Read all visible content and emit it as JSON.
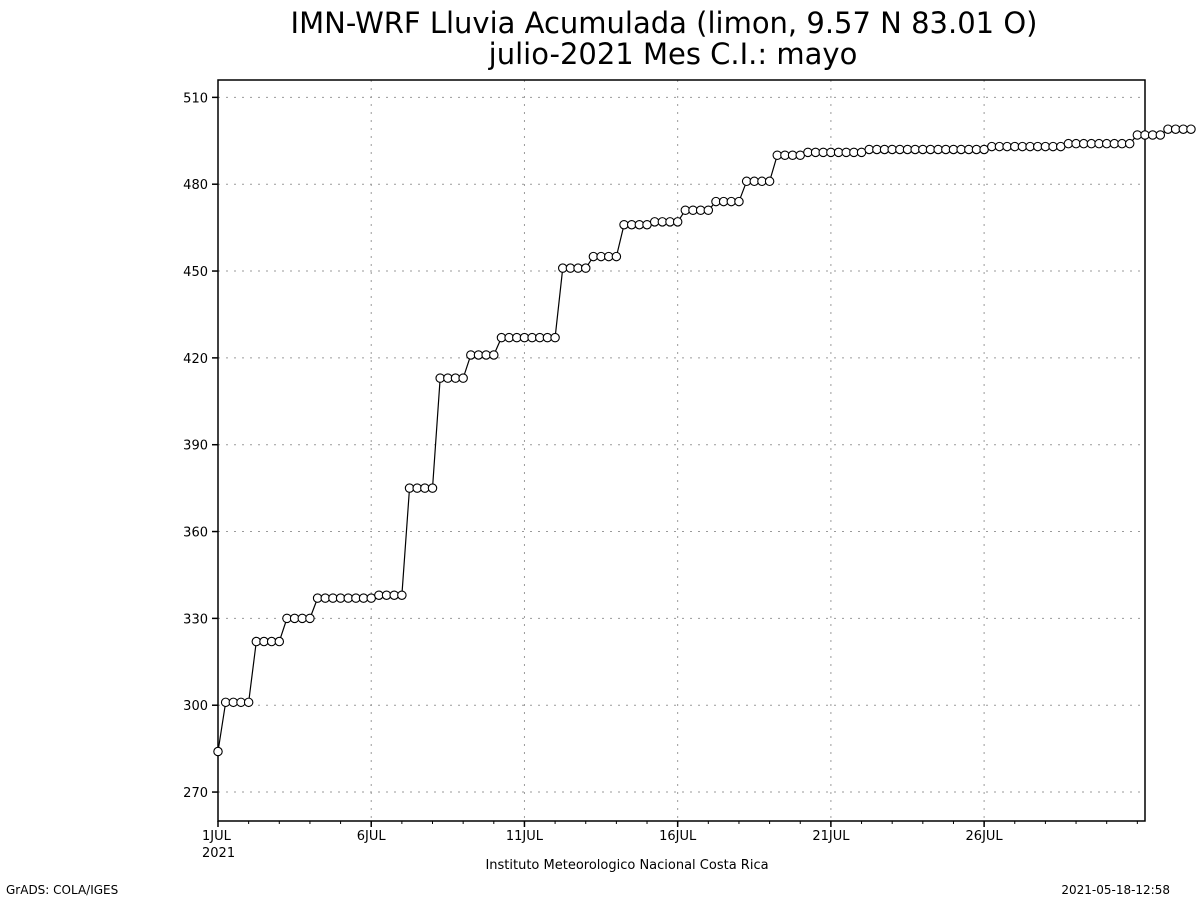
{
  "chart_data": {
    "type": "line",
    "title": "IMN-WRF  Lluvia Acumulada (limon, 9.57  N 83.01  O)",
    "subtitle": "julio-2021 Mes C.I.: mayo",
    "xlabel": "Instituto Meteorologico Nacional Costa Rica",
    "ylabel": "",
    "x_unit": "day of July 2021",
    "xlim": [
      1,
      31.25
    ],
    "ylim": [
      260,
      516
    ],
    "y_ticks": [
      270,
      300,
      330,
      360,
      390,
      420,
      450,
      480,
      510
    ],
    "x_ticks": [
      {
        "x": 1,
        "label": "1JUL",
        "sublabel": "2021"
      },
      {
        "x": 6,
        "label": "6JUL"
      },
      {
        "x": 11,
        "label": "11JUL"
      },
      {
        "x": 16,
        "label": "16JUL"
      },
      {
        "x": 21,
        "label": "21JUL"
      },
      {
        "x": 26,
        "label": "26JUL"
      }
    ],
    "grid": true,
    "marker": "open-circle",
    "series": [
      {
        "x_start": 1,
        "x_step": 0.25,
        "values": [
          284,
          301,
          301,
          301,
          301,
          322,
          322,
          322,
          322,
          330,
          330,
          330,
          330,
          337,
          337,
          337,
          337,
          337,
          337,
          337,
          337,
          338,
          338,
          338,
          338,
          375,
          375,
          375,
          375,
          413,
          413,
          413,
          413,
          421,
          421,
          421,
          421,
          427,
          427,
          427,
          427,
          427,
          427,
          427,
          427,
          451,
          451,
          451,
          451,
          455,
          455,
          455,
          455,
          466,
          466,
          466,
          466,
          467,
          467,
          467,
          467,
          471,
          471,
          471,
          471,
          474,
          474,
          474,
          474,
          481,
          481,
          481,
          481,
          490,
          490,
          490,
          490,
          491,
          491,
          491,
          491,
          491,
          491,
          491,
          491,
          492,
          492,
          492,
          492,
          492,
          492,
          492,
          492,
          492,
          492,
          492,
          492,
          492,
          492,
          492,
          492,
          493,
          493,
          493,
          493,
          493,
          493,
          493,
          493,
          493,
          493,
          494,
          494,
          494,
          494,
          494,
          494,
          494,
          494,
          494,
          497,
          497,
          497,
          497,
          499,
          499,
          499,
          499
        ]
      }
    ]
  },
  "footer": {
    "left": "GrADS: COLA/IGES",
    "right": "2021-05-18-12:58"
  }
}
